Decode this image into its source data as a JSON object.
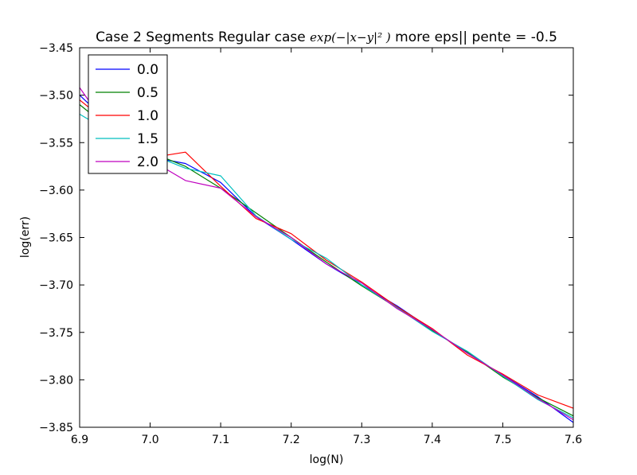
{
  "chart_data": {
    "type": "line",
    "title": {
      "prefix": "Case 2 Segments Regular case ",
      "math": "exp(−|x−y|² )",
      "suffix": " more eps|| pente = -0.5"
    },
    "xlabel": "log(N)",
    "ylabel": "log(err)",
    "xlim": [
      6.9,
      7.6
    ],
    "ylim": [
      -3.85,
      -3.45
    ],
    "xticks": [
      6.9,
      7.0,
      7.1,
      7.2,
      7.3,
      7.4,
      7.5,
      7.6
    ],
    "yticks": [
      -3.45,
      -3.5,
      -3.55,
      -3.6,
      -3.65,
      -3.7,
      -3.75,
      -3.8,
      -3.85
    ],
    "xtick_labels": [
      "6.9",
      "7.0",
      "7.1",
      "7.2",
      "7.3",
      "7.4",
      "7.5",
      "7.6"
    ],
    "ytick_labels": [
      "−3.45",
      "−3.50",
      "−3.55",
      "−3.60",
      "−3.65",
      "−3.70",
      "−3.75",
      "−3.80",
      "−3.85"
    ],
    "grid": false,
    "legend_position": "top-left",
    "series": [
      {
        "name": "0.0",
        "color": "#0000ff",
        "x": [
          6.9,
          6.95,
          7.0,
          7.05,
          7.1,
          7.15,
          7.2,
          7.25,
          7.3,
          7.35,
          7.4,
          7.45,
          7.5,
          7.55,
          7.6
        ],
        "y": [
          -3.5,
          -3.535,
          -3.565,
          -3.572,
          -3.592,
          -3.628,
          -3.652,
          -3.678,
          -3.7,
          -3.722,
          -3.747,
          -3.772,
          -3.795,
          -3.818,
          -3.845
        ]
      },
      {
        "name": "0.5",
        "color": "#008000",
        "x": [
          6.9,
          6.95,
          7.0,
          7.05,
          7.1,
          7.15,
          7.2,
          7.25,
          7.3,
          7.35,
          7.4,
          7.45,
          7.5,
          7.55,
          7.6
        ],
        "y": [
          -3.51,
          -3.54,
          -3.56,
          -3.575,
          -3.598,
          -3.624,
          -3.65,
          -3.676,
          -3.701,
          -3.724,
          -3.748,
          -3.771,
          -3.797,
          -3.819,
          -3.838
        ]
      },
      {
        "name": "1.0",
        "color": "#ff0000",
        "x": [
          6.9,
          6.95,
          7.0,
          7.05,
          7.1,
          7.15,
          7.2,
          7.25,
          7.3,
          7.35,
          7.4,
          7.45,
          7.5,
          7.55,
          7.6
        ],
        "y": [
          -3.505,
          -3.535,
          -3.566,
          -3.56,
          -3.596,
          -3.63,
          -3.646,
          -3.674,
          -3.697,
          -3.723,
          -3.746,
          -3.774,
          -3.794,
          -3.816,
          -3.83
        ]
      },
      {
        "name": "1.5",
        "color": "#00bfbf",
        "x": [
          6.9,
          6.95,
          7.0,
          7.05,
          7.1,
          7.15,
          7.2,
          7.25,
          7.3,
          7.35,
          7.4,
          7.45,
          7.5,
          7.55,
          7.6
        ],
        "y": [
          -3.52,
          -3.542,
          -3.562,
          -3.577,
          -3.585,
          -3.627,
          -3.652,
          -3.672,
          -3.7,
          -3.724,
          -3.749,
          -3.77,
          -3.796,
          -3.821,
          -3.84
        ]
      },
      {
        "name": "2.0",
        "color": "#bf00bf",
        "x": [
          6.9,
          6.95,
          7.0,
          7.05,
          7.1,
          7.15,
          7.2,
          7.25,
          7.3,
          7.35,
          7.4,
          7.45,
          7.5,
          7.55,
          7.6
        ],
        "y": [
          -3.492,
          -3.545,
          -3.568,
          -3.59,
          -3.598,
          -3.628,
          -3.65,
          -3.678,
          -3.698,
          -3.725,
          -3.747,
          -3.772,
          -3.795,
          -3.82,
          -3.842
        ]
      }
    ]
  }
}
